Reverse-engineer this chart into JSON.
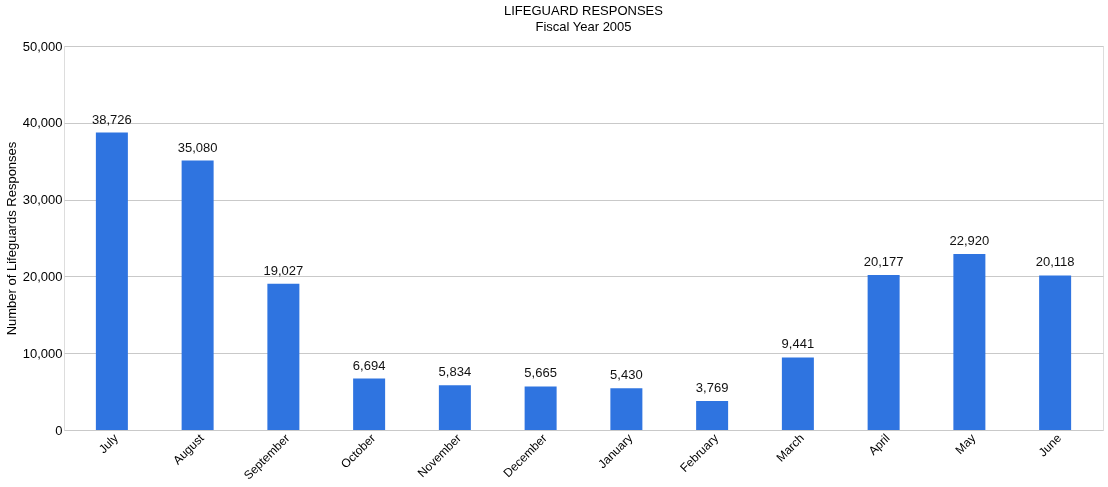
{
  "chart_data": {
    "type": "bar",
    "title": "LIFEGUARD RESPONSES",
    "subtitle": "Fiscal Year 2005",
    "ylabel": "Number of Lifeguards Responses",
    "categories": [
      "July",
      "August",
      "September",
      "October",
      "November",
      "December",
      "January",
      "February",
      "March",
      "April",
      "May",
      "June"
    ],
    "values": [
      38726,
      35080,
      19027,
      6694,
      5834,
      5665,
      5430,
      3769,
      9441,
      20177,
      22920,
      20118
    ],
    "value_labels": [
      "38,726",
      "35,080",
      "19,027",
      "6,694",
      "5,834",
      "5,665",
      "5,430",
      "3,769",
      "9,441",
      "20,177",
      "22,920",
      "20,118"
    ],
    "color": "#2f74e0",
    "ylim": [
      0,
      50000
    ],
    "yticks": [
      0,
      {
        "value": 10000,
        "label": "10,000"
      },
      {
        "value": 20000,
        "label": "20,000"
      },
      {
        "value": 30000,
        "label": "30,000"
      },
      {
        "value": 40000,
        "label": "40,000"
      },
      {
        "value": 50000,
        "label": "50,000"
      }
    ],
    "grid": "y"
  }
}
